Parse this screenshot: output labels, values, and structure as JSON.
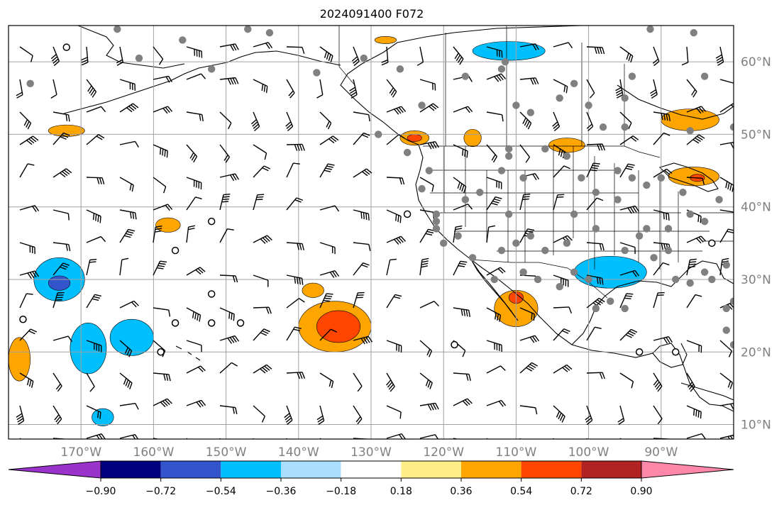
{
  "title": "2024091400 F072",
  "map": {
    "lon_range": [
      -180,
      -80
    ],
    "lat_range": [
      8,
      65
    ],
    "graticule_lons": [
      -170,
      -160,
      -150,
      -140,
      -130,
      -120,
      -110,
      -100,
      -90
    ],
    "graticule_lats": [
      10,
      20,
      30,
      40,
      50,
      60
    ],
    "lon_labels": [
      "170°W",
      "160°W",
      "150°W",
      "140°W",
      "130°W",
      "120°W",
      "110°W",
      "100°W",
      "90°W"
    ],
    "lat_labels": [
      "10°N",
      "20°N",
      "30°N",
      "40°N",
      "50°N",
      "60°N"
    ],
    "grid_color": "#a0a0a0",
    "label_color": "#808080"
  },
  "colorbar": {
    "levels": [
      -0.9,
      -0.72,
      -0.54,
      -0.36,
      -0.18,
      0.18,
      0.36,
      0.54,
      0.72,
      0.9
    ],
    "tick_labels": [
      "−0.90",
      "−0.72",
      "−0.54",
      "−0.36",
      "−0.18",
      "0.18",
      "0.36",
      "0.54",
      "0.72",
      "0.90"
    ],
    "colors": [
      "#9933cc",
      "#000080",
      "#3355cc",
      "#00bfff",
      "#aadfff",
      "#ffffff",
      "#ffee88",
      "#ffa500",
      "#ff4500",
      "#b22222",
      "#ff88aa"
    ]
  },
  "fields": [
    {
      "lon": -173,
      "lat": 30,
      "rx": 3.5,
      "ry": 3,
      "level": -0.54
    },
    {
      "lon": -173,
      "lat": 29.5,
      "rx": 1.5,
      "ry": 1,
      "level": -0.72
    },
    {
      "lon": -169,
      "lat": 20.5,
      "rx": 2.5,
      "ry": 3.5,
      "level": -0.54
    },
    {
      "lon": -163,
      "lat": 22,
      "rx": 3,
      "ry": 2.5,
      "level": -0.54
    },
    {
      "lon": -167,
      "lat": 11,
      "rx": 1.5,
      "ry": 1.2,
      "level": -0.54
    },
    {
      "lon": -111,
      "lat": 61.5,
      "rx": 5,
      "ry": 1.3,
      "level": -0.54
    },
    {
      "lon": -97,
      "lat": 31,
      "rx": 5,
      "ry": 2.2,
      "level": -0.54
    },
    {
      "lon": -135,
      "lat": 23.5,
      "rx": 5,
      "ry": 3.5,
      "level": 0.36
    },
    {
      "lon": -134.5,
      "lat": 23.5,
      "rx": 3,
      "ry": 2.2,
      "level": 0.54
    },
    {
      "lon": -138,
      "lat": 28.5,
      "rx": 1.5,
      "ry": 1,
      "level": 0.36
    },
    {
      "lon": -110,
      "lat": 26,
      "rx": 3,
      "ry": 2.5,
      "level": 0.36
    },
    {
      "lon": -110,
      "lat": 27.5,
      "rx": 1,
      "ry": 0.8,
      "level": 0.54
    },
    {
      "lon": -124,
      "lat": 49.5,
      "rx": 2,
      "ry": 1,
      "level": 0.36
    },
    {
      "lon": -124,
      "lat": 49.5,
      "rx": 1,
      "ry": 0.5,
      "level": 0.54
    },
    {
      "lon": -86,
      "lat": 52,
      "rx": 4,
      "ry": 1.5,
      "level": 0.36
    },
    {
      "lon": -85.5,
      "lat": 44.2,
      "rx": 3.5,
      "ry": 1.3,
      "level": 0.36
    },
    {
      "lon": -85,
      "lat": 44,
      "rx": 1,
      "ry": 0.5,
      "level": 0.54
    },
    {
      "lon": -178.5,
      "lat": 19,
      "rx": 1.5,
      "ry": 3,
      "level": 0.36
    },
    {
      "lon": -172,
      "lat": 50.5,
      "rx": 2.5,
      "ry": 0.8,
      "level": 0.36
    },
    {
      "lon": -158,
      "lat": 37.5,
      "rx": 1.7,
      "ry": 1,
      "level": 0.36
    },
    {
      "lon": -103,
      "lat": 48.5,
      "rx": 2.5,
      "ry": 1,
      "level": 0.36
    },
    {
      "lon": -116,
      "lat": 49.5,
      "rx": 1.2,
      "ry": 1.2,
      "level": 0.36
    },
    {
      "lon": -128,
      "lat": 63,
      "rx": 1.5,
      "ry": 0.5,
      "level": 0.36
    }
  ],
  "stations": [
    [
      -165,
      64.5
    ],
    [
      -162,
      60.5
    ],
    [
      -156,
      63
    ],
    [
      -177,
      57
    ],
    [
      -152,
      59
    ],
    [
      -147,
      64.5
    ],
    [
      -144,
      64
    ],
    [
      -137.5,
      58.5
    ],
    [
      -131,
      60.5
    ],
    [
      -126,
      59
    ],
    [
      -111.5,
      60
    ],
    [
      -117,
      58
    ],
    [
      -112,
      59
    ],
    [
      -123,
      54
    ],
    [
      -110,
      54
    ],
    [
      -108,
      53
    ],
    [
      -104,
      55
    ],
    [
      -100,
      54
    ],
    [
      -98,
      51
    ],
    [
      -95,
      51
    ],
    [
      -95,
      55
    ],
    [
      -102,
      57
    ],
    [
      -91.5,
      64.5
    ],
    [
      -85.5,
      64
    ],
    [
      -84,
      58
    ],
    [
      -94,
      58
    ],
    [
      -86,
      50.5
    ],
    [
      -80,
      51
    ],
    [
      -129,
      50
    ],
    [
      -125,
      47.5
    ],
    [
      -122,
      45
    ],
    [
      -123,
      42.5
    ],
    [
      -115,
      42
    ],
    [
      -121,
      39
    ],
    [
      -121,
      38
    ],
    [
      -112,
      45
    ],
    [
      -111,
      39
    ],
    [
      -117,
      41
    ],
    [
      -111,
      47
    ],
    [
      -111,
      48
    ],
    [
      -106,
      48
    ],
    [
      -103,
      47
    ],
    [
      -109,
      44
    ],
    [
      -101,
      44
    ],
    [
      -99,
      42
    ],
    [
      -96,
      45
    ],
    [
      -94,
      44
    ],
    [
      -90,
      44
    ],
    [
      -92,
      43
    ],
    [
      -87,
      42
    ],
    [
      -86,
      39
    ],
    [
      -84,
      38
    ],
    [
      -82,
      41
    ],
    [
      -96,
      41
    ],
    [
      -99,
      37
    ],
    [
      -102,
      39
    ],
    [
      -92,
      37
    ],
    [
      -89,
      37
    ],
    [
      -93,
      36
    ],
    [
      -95,
      34
    ],
    [
      -91,
      33
    ],
    [
      -89,
      34
    ],
    [
      -84,
      31
    ],
    [
      -83,
      30
    ],
    [
      -86,
      29.5
    ],
    [
      -88,
      30
    ],
    [
      -81,
      32
    ],
    [
      -95,
      26
    ],
    [
      -97,
      27
    ],
    [
      -99,
      26
    ],
    [
      -100,
      30
    ],
    [
      -102,
      31
    ],
    [
      -104,
      29
    ],
    [
      -108,
      36
    ],
    [
      -106,
      34
    ],
    [
      -107,
      30
    ],
    [
      -109,
      31
    ],
    [
      -112,
      34
    ],
    [
      -116,
      33
    ],
    [
      -120,
      35
    ],
    [
      -121,
      37
    ],
    [
      -118,
      36
    ],
    [
      -113,
      30
    ],
    [
      -110,
      35
    ],
    [
      -103,
      35
    ],
    [
      -81,
      23
    ],
    [
      -80,
      21
    ],
    [
      -80,
      27
    ],
    [
      -81,
      26
    ]
  ],
  "hollow_stations": [
    [
      -172,
      62
    ],
    [
      -125,
      39
    ],
    [
      -152,
      38
    ],
    [
      -157,
      34
    ],
    [
      -152,
      28
    ],
    [
      -157,
      24
    ],
    [
      -152,
      24
    ],
    [
      -148,
      24
    ],
    [
      -159,
      20
    ],
    [
      -93,
      20
    ],
    [
      -88,
      20
    ],
    [
      -83,
      35
    ],
    [
      -178,
      24.5
    ],
    [
      -118.5,
      21
    ]
  ]
}
